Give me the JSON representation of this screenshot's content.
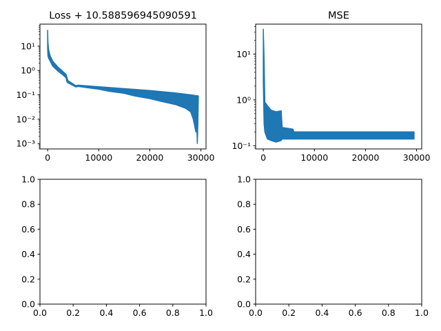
{
  "chart_data": [
    {
      "type": "line",
      "title": "Loss + 10.588596945090591",
      "xlabel": "",
      "ylabel": "",
      "yscale": "log",
      "xlim": [
        -1500,
        31000
      ],
      "ylim": [
        0.0006,
        80
      ],
      "xticks": [
        0,
        10000,
        20000,
        30000
      ],
      "xtick_labels": [
        "0",
        "10000",
        "20000",
        "30000"
      ],
      "yticks": [
        0.001,
        0.01,
        0.1,
        1,
        10
      ],
      "ytick_labels": [
        "10⁻³",
        "10⁻²",
        "10⁻¹",
        "10⁰",
        "10¹"
      ],
      "grid": false,
      "series": [
        {
          "color": "#1f77b4",
          "upper": [
            [
              0,
              45
            ],
            [
              60,
              15
            ],
            [
              200,
              7
            ],
            [
              500,
              4
            ],
            [
              1000,
              2.4
            ],
            [
              2000,
              1.4
            ],
            [
              3000,
              0.9
            ],
            [
              3600,
              0.7
            ],
            [
              3800,
              0.5
            ],
            [
              4000,
              0.38
            ],
            [
              5000,
              0.28
            ],
            [
              5500,
              0.24
            ],
            [
              6000,
              0.25
            ],
            [
              10000,
              0.215
            ],
            [
              15000,
              0.18
            ],
            [
              20000,
              0.15
            ],
            [
              25000,
              0.12
            ],
            [
              28000,
              0.1
            ],
            [
              29500,
              0.09
            ]
          ],
          "lower": [
            [
              0,
              8
            ],
            [
              60,
              4
            ],
            [
              200,
              3.2
            ],
            [
              500,
              2.4
            ],
            [
              1000,
              1.5
            ],
            [
              2000,
              0.95
            ],
            [
              3000,
              0.65
            ],
            [
              3600,
              0.5
            ],
            [
              3800,
              0.33
            ],
            [
              4000,
              0.31
            ],
            [
              5000,
              0.24
            ],
            [
              5500,
              0.21
            ],
            [
              6000,
              0.22
            ],
            [
              10000,
              0.17
            ],
            [
              12000,
              0.14
            ],
            [
              15000,
              0.115
            ],
            [
              17000,
              0.09
            ],
            [
              20000,
              0.07
            ],
            [
              22000,
              0.055
            ],
            [
              25000,
              0.04
            ],
            [
              27000,
              0.028
            ],
            [
              28000,
              0.02
            ],
            [
              28500,
              0.01
            ],
            [
              28800,
              0.005
            ],
            [
              29000,
              0.003
            ],
            [
              29200,
              0.004
            ],
            [
              29300,
              0.001
            ],
            [
              29400,
              0.006
            ],
            [
              29500,
              0.09
            ]
          ]
        }
      ]
    },
    {
      "type": "line",
      "title": "MSE",
      "xlabel": "",
      "ylabel": "",
      "yscale": "log",
      "xlim": [
        -1500,
        31000
      ],
      "ylim": [
        0.085,
        45
      ],
      "xticks": [
        0,
        10000,
        20000,
        30000
      ],
      "xtick_labels": [
        "0",
        "10000",
        "20000",
        "30000"
      ],
      "yticks": [
        0.1,
        1,
        10
      ],
      "ytick_labels": [
        "10⁻¹",
        "10⁰",
        "10¹"
      ],
      "grid": false,
      "series": [
        {
          "color": "#1f77b4",
          "upper": [
            [
              0,
              35
            ],
            [
              150,
              8
            ],
            [
              300,
              0.9
            ],
            [
              800,
              0.75
            ],
            [
              1500,
              0.6
            ],
            [
              2500,
              0.55
            ],
            [
              3500,
              0.58
            ],
            [
              3700,
              0.25
            ],
            [
              5800,
              0.23
            ],
            [
              6000,
              0.2
            ],
            [
              29500,
              0.2
            ]
          ],
          "lower": [
            [
              0,
              2.5
            ],
            [
              150,
              0.3
            ],
            [
              300,
              0.2
            ],
            [
              800,
              0.14
            ],
            [
              1500,
              0.13
            ],
            [
              2500,
              0.12
            ],
            [
              3500,
              0.13
            ],
            [
              3700,
              0.14
            ],
            [
              6000,
              0.14
            ],
            [
              29500,
              0.14
            ]
          ]
        }
      ]
    },
    {
      "type": "line",
      "title": "",
      "xlabel": "",
      "ylabel": "",
      "yscale": "linear",
      "xlim": [
        0,
        1
      ],
      "ylim": [
        0,
        1
      ],
      "xticks": [
        0,
        0.2,
        0.4,
        0.6,
        0.8,
        1.0
      ],
      "xtick_labels": [
        "0.0",
        "0.2",
        "0.4",
        "0.6",
        "0.8",
        "1.0"
      ],
      "yticks": [
        0,
        0.2,
        0.4,
        0.6,
        0.8,
        1.0
      ],
      "ytick_labels": [
        "0.0",
        "0.2",
        "0.4",
        "0.6",
        "0.8",
        "1.0"
      ],
      "grid": false,
      "series": []
    },
    {
      "type": "line",
      "title": "",
      "xlabel": "",
      "ylabel": "",
      "yscale": "linear",
      "xlim": [
        0,
        1
      ],
      "ylim": [
        0,
        1
      ],
      "xticks": [
        0,
        0.2,
        0.4,
        0.6,
        0.8,
        1.0
      ],
      "xtick_labels": [
        "0.0",
        "0.2",
        "0.4",
        "0.6",
        "0.8",
        "1.0"
      ],
      "yticks": [
        0,
        0.2,
        0.4,
        0.6,
        0.8,
        1.0
      ],
      "ytick_labels": [
        "0.0",
        "0.2",
        "0.4",
        "0.6",
        "0.8",
        "1.0"
      ],
      "grid": false,
      "series": []
    }
  ]
}
